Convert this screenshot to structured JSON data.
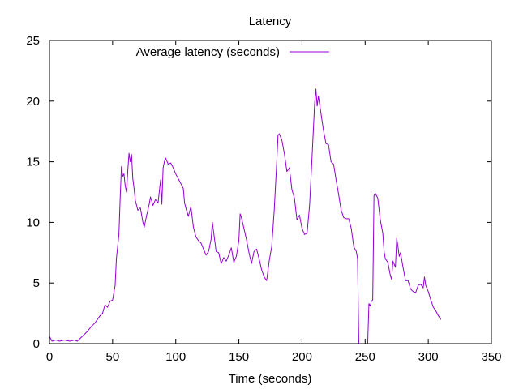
{
  "chart_data": {
    "type": "line",
    "title": "Latency",
    "xlabel": "Time (seconds)",
    "ylabel": "",
    "xlim": [
      0,
      350
    ],
    "ylim": [
      0,
      25
    ],
    "xticks": [
      0,
      50,
      100,
      150,
      200,
      250,
      300,
      350
    ],
    "yticks": [
      0,
      5,
      10,
      15,
      20,
      25
    ],
    "grid": false,
    "legend_position": "top-left",
    "series": [
      {
        "name": "Average latency (seconds)",
        "color": "#9400d3",
        "points": [
          [
            0,
            0.6
          ],
          [
            2,
            0.2
          ],
          [
            5,
            0.3
          ],
          [
            8,
            0.2
          ],
          [
            12,
            0.3
          ],
          [
            16,
            0.2
          ],
          [
            20,
            0.3
          ],
          [
            22,
            0.2
          ],
          [
            25,
            0.5
          ],
          [
            28,
            0.8
          ],
          [
            30,
            1.0
          ],
          [
            33,
            1.4
          ],
          [
            36,
            1.7
          ],
          [
            38,
            2.0
          ],
          [
            40,
            2.3
          ],
          [
            42,
            2.5
          ],
          [
            44,
            3.2
          ],
          [
            46,
            3.0
          ],
          [
            48,
            3.5
          ],
          [
            50,
            3.6
          ],
          [
            52,
            4.8
          ],
          [
            53,
            7.0
          ],
          [
            55,
            9.0
          ],
          [
            56,
            12.0
          ],
          [
            57,
            14.6
          ],
          [
            58,
            13.8
          ],
          [
            59,
            14.0
          ],
          [
            60,
            13.0
          ],
          [
            61,
            12.5
          ],
          [
            62,
            14.2
          ],
          [
            63,
            15.7
          ],
          [
            64,
            15.0
          ],
          [
            65,
            15.6
          ],
          [
            66,
            13.6
          ],
          [
            67,
            12.8
          ],
          [
            68,
            11.8
          ],
          [
            70,
            11.0
          ],
          [
            72,
            11.2
          ],
          [
            74,
            10.0
          ],
          [
            75,
            9.6
          ],
          [
            77,
            10.6
          ],
          [
            79,
            11.5
          ],
          [
            80,
            12.1
          ],
          [
            82,
            11.4
          ],
          [
            84,
            11.9
          ],
          [
            86,
            11.6
          ],
          [
            88,
            13.5
          ],
          [
            89,
            11.5
          ],
          [
            90,
            14.5
          ],
          [
            91,
            15.0
          ],
          [
            92,
            15.3
          ],
          [
            94,
            14.8
          ],
          [
            96,
            14.9
          ],
          [
            98,
            14.5
          ],
          [
            100,
            14.0
          ],
          [
            102,
            13.6
          ],
          [
            104,
            13.2
          ],
          [
            106,
            12.8
          ],
          [
            107,
            11.6
          ],
          [
            108,
            11.2
          ],
          [
            110,
            10.5
          ],
          [
            112,
            11.3
          ],
          [
            114,
            9.6
          ],
          [
            116,
            8.8
          ],
          [
            118,
            8.5
          ],
          [
            120,
            8.3
          ],
          [
            122,
            7.8
          ],
          [
            124,
            7.3
          ],
          [
            126,
            7.6
          ],
          [
            128,
            8.6
          ],
          [
            129,
            10.0
          ],
          [
            130,
            9.2
          ],
          [
            132,
            7.6
          ],
          [
            134,
            7.5
          ],
          [
            136,
            6.6
          ],
          [
            138,
            7.1
          ],
          [
            140,
            6.8
          ],
          [
            142,
            7.3
          ],
          [
            144,
            7.9
          ],
          [
            146,
            6.7
          ],
          [
            148,
            7.2
          ],
          [
            150,
            8.5
          ],
          [
            151,
            10.7
          ],
          [
            152,
            10.4
          ],
          [
            154,
            9.5
          ],
          [
            156,
            8.6
          ],
          [
            158,
            7.5
          ],
          [
            160,
            6.6
          ],
          [
            162,
            7.6
          ],
          [
            164,
            7.8
          ],
          [
            166,
            7.0
          ],
          [
            168,
            6.1
          ],
          [
            170,
            5.5
          ],
          [
            172,
            5.2
          ],
          [
            174,
            6.8
          ],
          [
            176,
            8.0
          ],
          [
            178,
            11.0
          ],
          [
            180,
            15.0
          ],
          [
            181,
            17.2
          ],
          [
            182,
            17.3
          ],
          [
            184,
            16.8
          ],
          [
            186,
            15.7
          ],
          [
            188,
            14.2
          ],
          [
            190,
            14.5
          ],
          [
            192,
            12.7
          ],
          [
            194,
            12.0
          ],
          [
            196,
            10.2
          ],
          [
            198,
            10.6
          ],
          [
            200,
            9.5
          ],
          [
            202,
            9.0
          ],
          [
            204,
            9.1
          ],
          [
            206,
            11.4
          ],
          [
            208,
            15.5
          ],
          [
            210,
            19.8
          ],
          [
            211,
            21.0
          ],
          [
            212,
            19.6
          ],
          [
            213,
            20.4
          ],
          [
            215,
            19.0
          ],
          [
            217,
            17.6
          ],
          [
            219,
            16.5
          ],
          [
            221,
            16.4
          ],
          [
            223,
            15.0
          ],
          [
            225,
            14.8
          ],
          [
            227,
            13.5
          ],
          [
            229,
            12.3
          ],
          [
            231,
            11.0
          ],
          [
            233,
            10.4
          ],
          [
            235,
            10.3
          ],
          [
            237,
            10.3
          ],
          [
            239,
            9.5
          ],
          [
            241,
            8.0
          ],
          [
            243,
            7.6
          ],
          [
            244,
            7.0
          ],
          [
            245,
            0.0
          ],
          [
            247,
            0.0
          ],
          [
            250,
            0.0
          ],
          [
            252,
            0.0
          ],
          [
            253,
            3.3
          ],
          [
            254,
            3.1
          ],
          [
            255,
            3.5
          ],
          [
            256,
            3.6
          ],
          [
            257,
            12.2
          ],
          [
            258,
            12.4
          ],
          [
            260,
            12.0
          ],
          [
            262,
            10.2
          ],
          [
            264,
            9.1
          ],
          [
            265,
            7.6
          ],
          [
            266,
            7.0
          ],
          [
            268,
            6.7
          ],
          [
            270,
            5.6
          ],
          [
            271,
            5.3
          ],
          [
            272,
            6.8
          ],
          [
            274,
            6.3
          ],
          [
            275,
            8.7
          ],
          [
            276,
            8.0
          ],
          [
            277,
            7.2
          ],
          [
            278,
            7.5
          ],
          [
            280,
            6.3
          ],
          [
            282,
            5.2
          ],
          [
            284,
            5.2
          ],
          [
            286,
            4.5
          ],
          [
            288,
            4.3
          ],
          [
            290,
            4.2
          ],
          [
            292,
            4.8
          ],
          [
            294,
            4.9
          ],
          [
            296,
            4.6
          ],
          [
            297,
            5.5
          ],
          [
            298,
            4.8
          ],
          [
            300,
            4.3
          ],
          [
            302,
            3.6
          ],
          [
            304,
            3.0
          ],
          [
            306,
            2.7
          ],
          [
            308,
            2.3
          ],
          [
            310,
            2.0
          ]
        ]
      }
    ]
  }
}
